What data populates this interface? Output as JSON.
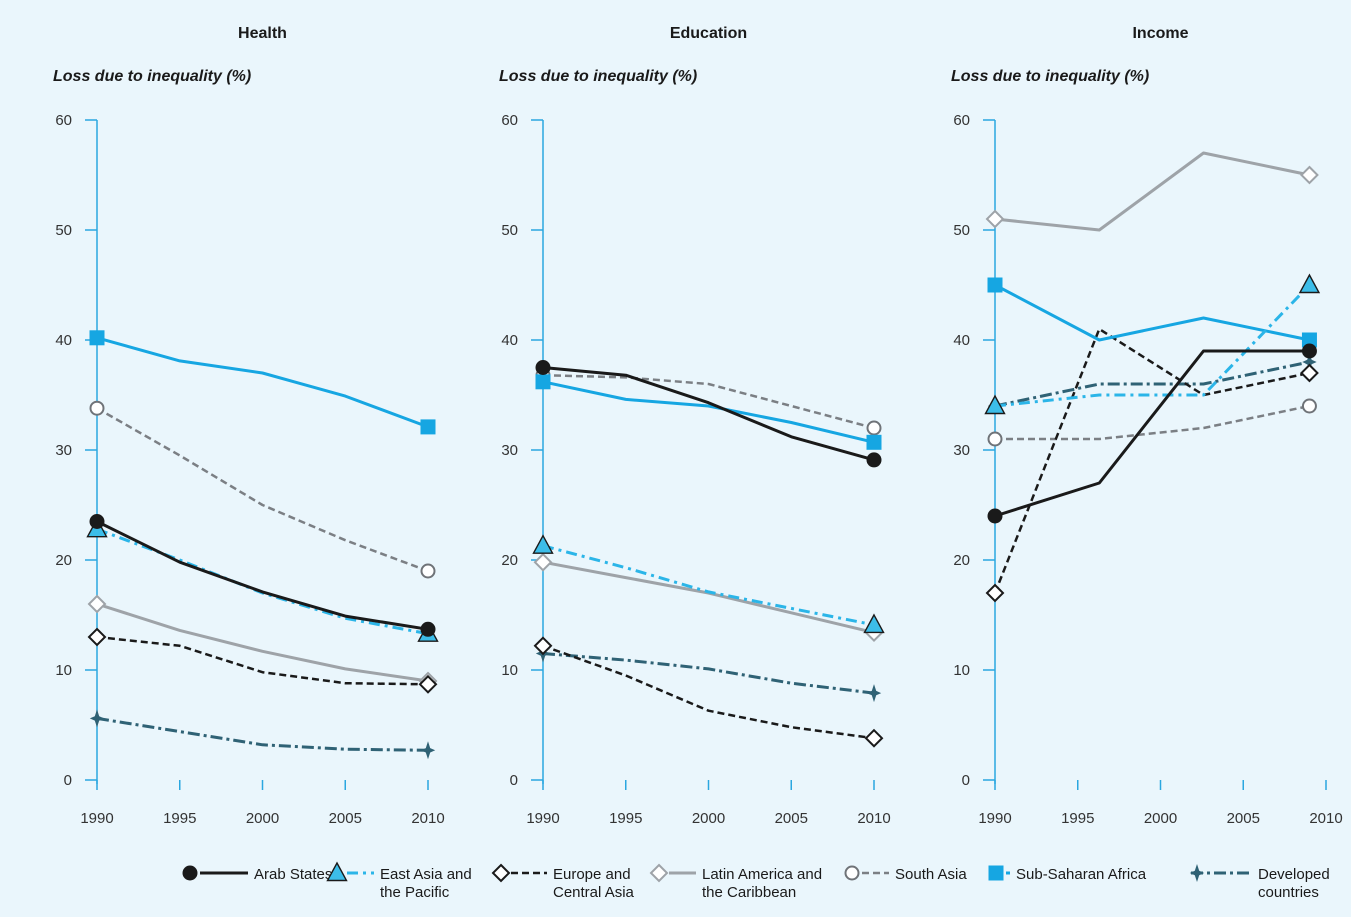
{
  "colors": {
    "background": "#eaf6fc",
    "axis": "#2aa7e0",
    "arab_states": "#1a1a1a",
    "east_asia_pacific": "#2bb5e8",
    "europe_central_asia": "#1a1a1a",
    "latin_america_caribbean": "#9ea3a8",
    "south_asia": "#7b7f84",
    "sub_saharan_africa": "#16a6e2",
    "developed_countries": "#2f6275"
  },
  "legend": [
    {
      "key": "arab_states",
      "lines": [
        "Arab States"
      ]
    },
    {
      "key": "east_asia_pacific",
      "lines": [
        "East Asia and",
        "the Pacific"
      ]
    },
    {
      "key": "europe_central_asia",
      "lines": [
        "Europe and",
        "Central Asia"
      ]
    },
    {
      "key": "latin_america_caribbean",
      "lines": [
        "Latin America and",
        "the Caribbean"
      ]
    },
    {
      "key": "south_asia",
      "lines": [
        "South Asia"
      ]
    },
    {
      "key": "sub_saharan_africa",
      "lines": [
        "Sub-Saharan Africa"
      ]
    },
    {
      "key": "developed_countries",
      "lines": [
        "Developed",
        "countries"
      ]
    }
  ],
  "chart_data": [
    {
      "type": "line",
      "title": "Health",
      "ylabel": "Loss due to inequality (%)",
      "xlabel": "",
      "xlim": [
        1990,
        2010
      ],
      "ylim": [
        0,
        60
      ],
      "xticks": [
        1990,
        1995,
        2000,
        2005,
        2010
      ],
      "yticks": [
        0,
        10,
        20,
        30,
        40,
        50,
        60
      ],
      "series": [
        {
          "key": "arab_states",
          "name": "Arab States",
          "x": [
            1990,
            1995,
            2000,
            2005,
            2010
          ],
          "y": [
            23.5,
            19.8,
            17.1,
            14.9,
            13.7
          ]
        },
        {
          "key": "east_asia_pacific",
          "name": "East Asia and the Pacific",
          "x": [
            1990,
            1995,
            2000,
            2005,
            2010
          ],
          "y": [
            22.8,
            20.0,
            17.0,
            14.7,
            13.3
          ]
        },
        {
          "key": "europe_central_asia",
          "name": "Europe and Central Asia",
          "x": [
            1990,
            1995,
            2000,
            2005,
            2010
          ],
          "y": [
            13.0,
            12.2,
            9.8,
            8.8,
            8.7
          ]
        },
        {
          "key": "latin_america_caribbean",
          "name": "Latin America and the Caribbean",
          "x": [
            1990,
            1995,
            2000,
            2005,
            2010
          ],
          "y": [
            16.0,
            13.6,
            11.7,
            10.1,
            9.0
          ]
        },
        {
          "key": "south_asia",
          "name": "South Asia",
          "x": [
            1990,
            1995,
            2000,
            2005,
            2010
          ],
          "y": [
            33.8,
            29.5,
            25.0,
            21.8,
            19.0
          ]
        },
        {
          "key": "sub_saharan_africa",
          "name": "Sub-Saharan Africa",
          "x": [
            1990,
            1995,
            2000,
            2005,
            2010
          ],
          "y": [
            40.2,
            38.1,
            37.0,
            34.9,
            32.1
          ]
        },
        {
          "key": "developed_countries",
          "name": "Developed countries",
          "x": [
            1990,
            1995,
            2000,
            2005,
            2010
          ],
          "y": [
            5.6,
            4.4,
            3.2,
            2.8,
            2.7
          ]
        }
      ]
    },
    {
      "type": "line",
      "title": "Education",
      "ylabel": "Loss due to inequality (%)",
      "xlabel": "",
      "xlim": [
        1990,
        2010
      ],
      "ylim": [
        0,
        60
      ],
      "xticks": [
        1990,
        1995,
        2000,
        2005,
        2010
      ],
      "yticks": [
        0,
        10,
        20,
        30,
        40,
        50,
        60
      ],
      "series": [
        {
          "key": "arab_states",
          "name": "Arab States",
          "x": [
            1990,
            1995,
            2000,
            2005,
            2010
          ],
          "y": [
            37.5,
            36.8,
            34.3,
            31.2,
            29.1
          ]
        },
        {
          "key": "east_asia_pacific",
          "name": "East Asia and the Pacific",
          "x": [
            1990,
            1995,
            2000,
            2005,
            2010
          ],
          "y": [
            21.3,
            19.3,
            17.1,
            15.6,
            14.1
          ]
        },
        {
          "key": "europe_central_asia",
          "name": "Europe and Central Asia",
          "x": [
            1990,
            1995,
            2000,
            2005,
            2010
          ],
          "y": [
            12.2,
            9.5,
            6.3,
            4.8,
            3.8
          ]
        },
        {
          "key": "latin_america_caribbean",
          "name": "Latin America and the Caribbean",
          "x": [
            1990,
            1995,
            2000,
            2005,
            2010
          ],
          "y": [
            19.8,
            18.4,
            17.0,
            15.2,
            13.4
          ]
        },
        {
          "key": "south_asia",
          "name": "South Asia",
          "x": [
            1990,
            1995,
            2000,
            2005,
            2010
          ],
          "y": [
            36.8,
            36.6,
            36.0,
            34.0,
            32.0
          ]
        },
        {
          "key": "sub_saharan_africa",
          "name": "Sub-Saharan Africa",
          "x": [
            1990,
            1995,
            2000,
            2005,
            2010
          ],
          "y": [
            36.2,
            34.6,
            34.0,
            32.5,
            30.7
          ]
        },
        {
          "key": "developed_countries",
          "name": "Developed countries",
          "x": [
            1990,
            1995,
            2000,
            2005,
            2010
          ],
          "y": [
            11.5,
            10.9,
            10.1,
            8.8,
            7.9
          ]
        }
      ]
    },
    {
      "type": "line",
      "title": "Income",
      "ylabel": "Loss due to inequality (%)",
      "xlabel": "",
      "xlim": [
        1990,
        2010
      ],
      "ylim": [
        0,
        60
      ],
      "xticks": [
        1990,
        1995,
        2000,
        2005,
        2010
      ],
      "yticks": [
        0,
        10,
        20,
        30,
        40,
        50,
        60
      ],
      "series": [
        {
          "key": "arab_states",
          "name": "Arab States",
          "x": [
            1990,
            1996.3,
            2002.6,
            2009
          ],
          "y": [
            24,
            27,
            39,
            39
          ]
        },
        {
          "key": "east_asia_pacific",
          "name": "East Asia and the Pacific",
          "x": [
            1990,
            1996.3,
            2002.6,
            2009
          ],
          "y": [
            34,
            35,
            35,
            45
          ]
        },
        {
          "key": "europe_central_asia",
          "name": "Europe and Central Asia",
          "x": [
            1990,
            1996.3,
            2002.6,
            2009
          ],
          "y": [
            17,
            41,
            35,
            37
          ]
        },
        {
          "key": "latin_america_caribbean",
          "name": "Latin America and the Caribbean",
          "x": [
            1990,
            1996.3,
            2002.6,
            2009
          ],
          "y": [
            51,
            50,
            57,
            55
          ]
        },
        {
          "key": "south_asia",
          "name": "South Asia",
          "x": [
            1990,
            1996.3,
            2002.6,
            2009
          ],
          "y": [
            31,
            31,
            32,
            34
          ]
        },
        {
          "key": "sub_saharan_africa",
          "name": "Sub-Saharan Africa",
          "x": [
            1990,
            1996.3,
            2002.6,
            2009
          ],
          "y": [
            45,
            40,
            42,
            40
          ]
        },
        {
          "key": "developed_countries",
          "name": "Developed countries",
          "x": [
            1990,
            1996.3,
            2002.6,
            2009
          ],
          "y": [
            34,
            36,
            36,
            38
          ]
        }
      ]
    }
  ]
}
